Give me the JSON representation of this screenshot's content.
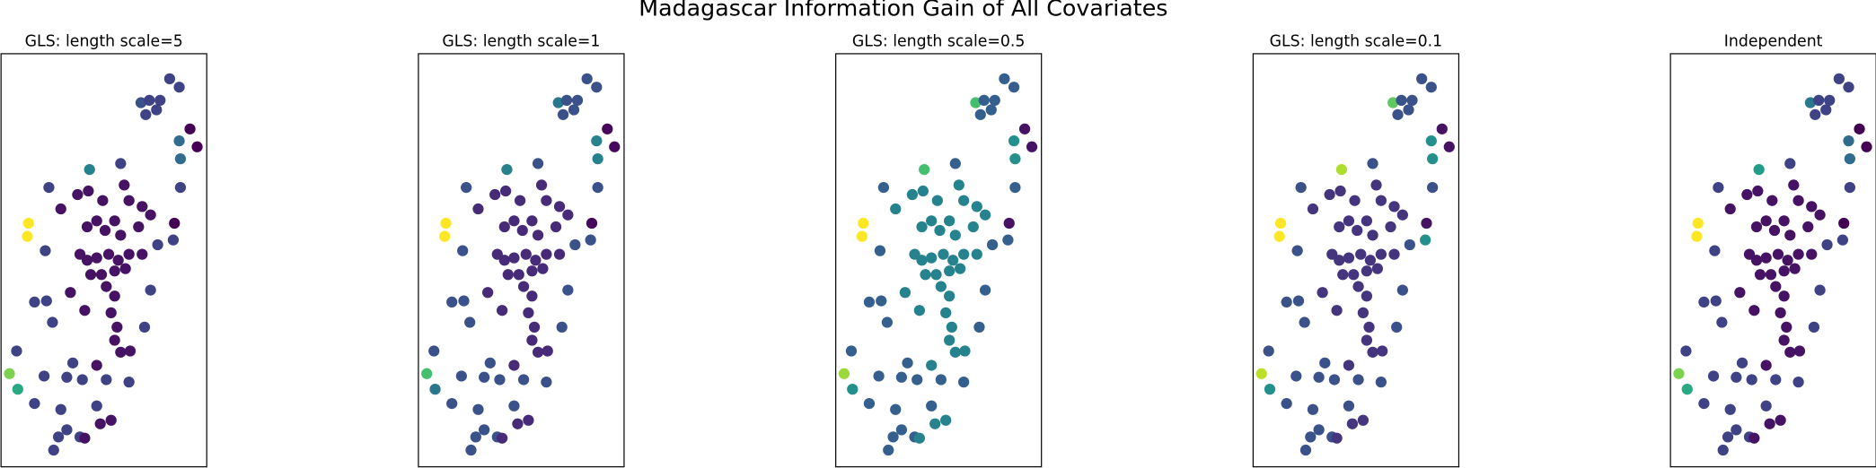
{
  "title": "Madagascar Information Gain of All Covariates",
  "chart_data": [
    {
      "type": "scatter",
      "title": "GLS: length scale=5",
      "colormap": "viridis",
      "clim": [
        0,
        1
      ],
      "xlim": [
        0,
        172
      ],
      "ylim": [
        0,
        346
      ],
      "x": [
        23,
        22,
        7,
        14,
        74,
        117,
        124,
        130,
        141,
        149,
        121,
        133,
        158,
        164,
        149,
        150,
        150,
        145,
        144,
        40,
        50,
        64,
        73,
        85,
        100,
        103,
        107,
        118,
        125,
        95,
        80,
        72,
        87,
        100,
        115,
        37,
        66,
        72,
        80,
        90,
        98,
        107,
        118,
        75,
        84,
        95,
        104,
        131,
        125,
        58,
        88,
        95,
        70,
        92,
        28,
        38,
        97,
        120,
        43,
        95,
        100,
        108,
        80,
        60,
        55,
        68,
        36,
        13,
        88,
        80,
        50,
        55,
        83,
        92,
        48,
        66,
        70,
        44,
        28,
        107
      ],
      "y": [
        204,
        193,
        78,
        65,
        249,
        305,
        307,
        299,
        325,
        318,
        295,
        307,
        283,
        268,
        273,
        258,
        234,
        204,
        190,
        234,
        216,
        228,
        231,
        223,
        254,
        236,
        223,
        218,
        211,
        206,
        206,
        201,
        198,
        194,
        201,
        181,
        178,
        173,
        175,
        178,
        173,
        178,
        178,
        161,
        161,
        164,
        166,
        186,
        148,
        146,
        151,
        143,
        131,
        129,
        138,
        139,
        117,
        117,
        121,
        106,
        96,
        97,
        85,
        87,
        75,
        73,
        76,
        97,
        73,
        51,
        48,
        31,
        36,
        39,
        25,
        25,
        24,
        14,
        53,
        71
      ],
      "values": [
        1,
        1,
        0.8,
        0.6,
        0.45,
        0.25,
        0.2,
        0.2,
        0.2,
        0.2,
        0.2,
        0.2,
        0,
        0,
        0.35,
        0.35,
        0.2,
        0,
        0.2,
        0.2,
        0.05,
        0.05,
        0.05,
        0.05,
        0.2,
        0.05,
        0.05,
        0.05,
        0.05,
        0.05,
        0.05,
        0.05,
        0.05,
        0.05,
        0.05,
        0.2,
        0.05,
        0.05,
        0.05,
        0.05,
        0.05,
        0.05,
        0.05,
        0.05,
        0.05,
        0.05,
        0.05,
        0.2,
        0.2,
        0.05,
        0.05,
        0.05,
        0.05,
        0.05,
        0.2,
        0.2,
        0.05,
        0.2,
        0.2,
        0.05,
        0.05,
        0.05,
        0.05,
        0.2,
        0.2,
        0.2,
        0.2,
        0.2,
        0.2,
        0.2,
        0.2,
        0.2,
        0.05,
        0.05,
        0.2,
        0.2,
        0.05,
        0.2,
        0.2,
        0.2
      ]
    },
    {
      "type": "scatter",
      "title": "GLS: length scale=1",
      "colormap": "viridis",
      "clim": [
        0,
        1
      ],
      "xlim": [
        0,
        172
      ],
      "ylim": [
        0,
        346
      ],
      "x": [
        23,
        22,
        7,
        14,
        74,
        117,
        124,
        130,
        141,
        149,
        121,
        133,
        158,
        164,
        149,
        150,
        150,
        145,
        144,
        40,
        50,
        64,
        73,
        85,
        100,
        103,
        107,
        118,
        125,
        95,
        80,
        72,
        87,
        100,
        115,
        37,
        66,
        72,
        80,
        90,
        98,
        107,
        118,
        75,
        84,
        95,
        104,
        131,
        125,
        58,
        88,
        95,
        70,
        92,
        28,
        38,
        97,
        120,
        43,
        95,
        100,
        108,
        80,
        60,
        55,
        68,
        36,
        13,
        88,
        80,
        50,
        55,
        83,
        92,
        48,
        66,
        70,
        44,
        28,
        107
      ],
      "y": [
        204,
        193,
        78,
        65,
        249,
        305,
        307,
        299,
        325,
        318,
        295,
        307,
        283,
        268,
        273,
        258,
        234,
        204,
        190,
        234,
        216,
        228,
        231,
        223,
        254,
        236,
        223,
        218,
        211,
        206,
        206,
        201,
        198,
        194,
        201,
        181,
        178,
        173,
        175,
        178,
        173,
        178,
        178,
        161,
        161,
        164,
        166,
        186,
        148,
        146,
        151,
        143,
        131,
        129,
        138,
        139,
        117,
        117,
        121,
        106,
        96,
        97,
        85,
        87,
        75,
        73,
        76,
        97,
        73,
        51,
        48,
        31,
        36,
        39,
        25,
        25,
        24,
        14,
        53,
        71
      ],
      "values": [
        1,
        1,
        0.7,
        0.4,
        0.45,
        0.4,
        0.25,
        0.25,
        0.25,
        0.25,
        0.25,
        0.25,
        0.02,
        0.02,
        0.45,
        0.45,
        0.25,
        0.02,
        0.25,
        0.25,
        0.12,
        0.12,
        0.12,
        0.12,
        0.25,
        0.12,
        0.12,
        0.12,
        0.12,
        0.12,
        0.12,
        0.12,
        0.12,
        0.12,
        0.12,
        0.25,
        0.12,
        0.12,
        0.12,
        0.12,
        0.12,
        0.12,
        0.12,
        0.12,
        0.12,
        0.12,
        0.12,
        0.25,
        0.25,
        0.12,
        0.12,
        0.12,
        0.12,
        0.12,
        0.25,
        0.25,
        0.12,
        0.25,
        0.25,
        0.12,
        0.12,
        0.12,
        0.12,
        0.25,
        0.25,
        0.25,
        0.25,
        0.25,
        0.25,
        0.25,
        0.25,
        0.25,
        0.12,
        0.12,
        0.25,
        0.25,
        0.12,
        0.25,
        0.25,
        0.25
      ]
    },
    {
      "type": "scatter",
      "title": "GLS: length scale=0.5",
      "colormap": "viridis",
      "clim": [
        0,
        1
      ],
      "xlim": [
        0,
        172
      ],
      "ylim": [
        0,
        346
      ],
      "x": [
        23,
        22,
        7,
        14,
        74,
        117,
        124,
        130,
        141,
        149,
        121,
        133,
        158,
        164,
        149,
        150,
        150,
        145,
        144,
        40,
        50,
        64,
        73,
        85,
        100,
        103,
        107,
        118,
        125,
        95,
        80,
        72,
        87,
        100,
        115,
        37,
        66,
        72,
        80,
        90,
        98,
        107,
        118,
        75,
        84,
        95,
        104,
        131,
        125,
        58,
        88,
        95,
        70,
        92,
        28,
        38,
        97,
        120,
        43,
        95,
        100,
        108,
        80,
        60,
        55,
        68,
        36,
        13,
        88,
        80,
        50,
        55,
        83,
        92,
        48,
        66,
        70,
        44,
        28,
        107
      ],
      "y": [
        204,
        193,
        78,
        65,
        249,
        305,
        307,
        299,
        325,
        318,
        295,
        307,
        283,
        268,
        273,
        258,
        234,
        204,
        190,
        234,
        216,
        228,
        231,
        223,
        254,
        236,
        223,
        218,
        211,
        206,
        206,
        201,
        198,
        194,
        201,
        181,
        178,
        173,
        175,
        178,
        173,
        178,
        178,
        161,
        161,
        164,
        166,
        186,
        148,
        146,
        151,
        143,
        131,
        129,
        138,
        139,
        117,
        117,
        121,
        106,
        96,
        97,
        85,
        87,
        75,
        73,
        76,
        97,
        73,
        51,
        48,
        31,
        36,
        39,
        25,
        25,
        24,
        14,
        53,
        71
      ],
      "values": [
        1,
        1,
        0.85,
        0.5,
        0.7,
        0.7,
        0.3,
        0.3,
        0.3,
        0.3,
        0.3,
        0.3,
        0.05,
        0.05,
        0.5,
        0.5,
        0.3,
        0.05,
        0.3,
        0.3,
        0.45,
        0.45,
        0.45,
        0.45,
        0.3,
        0.45,
        0.45,
        0.45,
        0.45,
        0.45,
        0.45,
        0.45,
        0.45,
        0.45,
        0.45,
        0.3,
        0.45,
        0.45,
        0.45,
        0.45,
        0.45,
        0.45,
        0.45,
        0.45,
        0.45,
        0.45,
        0.45,
        0.3,
        0.3,
        0.45,
        0.45,
        0.45,
        0.45,
        0.45,
        0.3,
        0.3,
        0.45,
        0.3,
        0.3,
        0.45,
        0.45,
        0.45,
        0.45,
        0.3,
        0.3,
        0.3,
        0.3,
        0.3,
        0.3,
        0.3,
        0.3,
        0.3,
        0.45,
        0.45,
        0.3,
        0.3,
        0.45,
        0.3,
        0.3,
        0.3
      ]
    },
    {
      "type": "scatter",
      "title": "GLS: length scale=0.1",
      "colormap": "viridis",
      "clim": [
        0,
        1
      ],
      "xlim": [
        0,
        172
      ],
      "ylim": [
        0,
        346
      ],
      "x": [
        23,
        22,
        7,
        14,
        74,
        117,
        124,
        130,
        141,
        149,
        121,
        133,
        158,
        164,
        149,
        150,
        150,
        145,
        144,
        40,
        50,
        64,
        73,
        85,
        100,
        103,
        107,
        118,
        125,
        95,
        80,
        72,
        87,
        100,
        115,
        37,
        66,
        72,
        80,
        90,
        98,
        107,
        118,
        75,
        84,
        95,
        104,
        131,
        125,
        58,
        88,
        95,
        70,
        92,
        28,
        38,
        97,
        120,
        43,
        95,
        100,
        108,
        80,
        60,
        55,
        68,
        36,
        13,
        88,
        80,
        50,
        55,
        83,
        92,
        48,
        66,
        70,
        44,
        28,
        107
      ],
      "y": [
        204,
        193,
        78,
        65,
        249,
        305,
        307,
        299,
        325,
        318,
        295,
        307,
        283,
        268,
        273,
        258,
        234,
        204,
        190,
        234,
        216,
        228,
        231,
        223,
        254,
        236,
        223,
        218,
        211,
        206,
        206,
        201,
        198,
        194,
        201,
        181,
        178,
        173,
        175,
        178,
        173,
        178,
        178,
        161,
        161,
        164,
        166,
        186,
        148,
        146,
        151,
        143,
        131,
        129,
        138,
        139,
        117,
        117,
        121,
        106,
        96,
        97,
        85,
        87,
        75,
        73,
        76,
        97,
        73,
        51,
        48,
        31,
        36,
        39,
        25,
        25,
        24,
        14,
        53,
        71
      ],
      "values": [
        1,
        1,
        0.9,
        0.5,
        0.88,
        0.75,
        0.25,
        0.25,
        0.25,
        0.25,
        0.25,
        0.25,
        0.05,
        0.05,
        0.5,
        0.5,
        0.25,
        0.05,
        0.5,
        0.25,
        0.15,
        0.15,
        0.15,
        0.15,
        0.25,
        0.15,
        0.15,
        0.15,
        0.15,
        0.15,
        0.15,
        0.15,
        0.15,
        0.15,
        0.15,
        0.25,
        0.15,
        0.15,
        0.15,
        0.15,
        0.15,
        0.15,
        0.15,
        0.15,
        0.15,
        0.15,
        0.15,
        0.25,
        0.25,
        0.15,
        0.15,
        0.15,
        0.15,
        0.15,
        0.25,
        0.25,
        0.15,
        0.25,
        0.25,
        0.15,
        0.15,
        0.15,
        0.15,
        0.25,
        0.25,
        0.25,
        0.25,
        0.25,
        0.25,
        0.25,
        0.25,
        0.25,
        0.15,
        0.15,
        0.25,
        0.25,
        0.15,
        0.25,
        0.25,
        0.25
      ]
    },
    {
      "type": "scatter",
      "title": "Independent",
      "colormap": "viridis",
      "clim": [
        0,
        1
      ],
      "xlim": [
        0,
        172
      ],
      "ylim": [
        0,
        346
      ],
      "x": [
        23,
        22,
        7,
        14,
        74,
        117,
        124,
        130,
        141,
        149,
        121,
        133,
        158,
        164,
        149,
        150,
        150,
        145,
        144,
        40,
        50,
        64,
        73,
        85,
        100,
        103,
        107,
        118,
        125,
        95,
        80,
        72,
        87,
        100,
        115,
        37,
        66,
        72,
        80,
        90,
        98,
        107,
        118,
        75,
        84,
        95,
        104,
        131,
        125,
        58,
        88,
        95,
        70,
        92,
        28,
        38,
        97,
        120,
        43,
        95,
        100,
        108,
        80,
        60,
        55,
        68,
        36,
        13,
        88,
        80,
        50,
        55,
        83,
        92,
        48,
        66,
        70,
        44,
        28,
        107
      ],
      "y": [
        204,
        193,
        78,
        65,
        249,
        305,
        307,
        299,
        325,
        318,
        295,
        307,
        283,
        268,
        273,
        258,
        234,
        204,
        190,
        234,
        216,
        228,
        231,
        223,
        254,
        236,
        223,
        218,
        211,
        206,
        206,
        201,
        198,
        194,
        201,
        181,
        178,
        173,
        175,
        178,
        173,
        178,
        178,
        161,
        161,
        164,
        166,
        186,
        148,
        146,
        151,
        143,
        131,
        129,
        138,
        139,
        117,
        117,
        121,
        106,
        96,
        97,
        85,
        87,
        75,
        73,
        76,
        97,
        73,
        51,
        48,
        31,
        36,
        39,
        25,
        25,
        24,
        14,
        53,
        71
      ],
      "values": [
        1,
        1,
        0.8,
        0.6,
        0.55,
        0.4,
        0.2,
        0.2,
        0.2,
        0.2,
        0.2,
        0.2,
        0,
        0,
        0.35,
        0.35,
        0.2,
        0,
        0.2,
        0.2,
        0.05,
        0.05,
        0.05,
        0.05,
        0.2,
        0.05,
        0.05,
        0.05,
        0.05,
        0.05,
        0.05,
        0.05,
        0.05,
        0.05,
        0.05,
        0.2,
        0.05,
        0.05,
        0.05,
        0.05,
        0.05,
        0.05,
        0.05,
        0.05,
        0.05,
        0.05,
        0.05,
        0.2,
        0.2,
        0.05,
        0.05,
        0.05,
        0.05,
        0.05,
        0.2,
        0.2,
        0.05,
        0.2,
        0.2,
        0.05,
        0.05,
        0.05,
        0.05,
        0.2,
        0.2,
        0.2,
        0.2,
        0.2,
        0.2,
        0.2,
        0.2,
        0.2,
        0.05,
        0.05,
        0.2,
        0.2,
        0.05,
        0.2,
        0.2,
        0.2
      ]
    }
  ]
}
